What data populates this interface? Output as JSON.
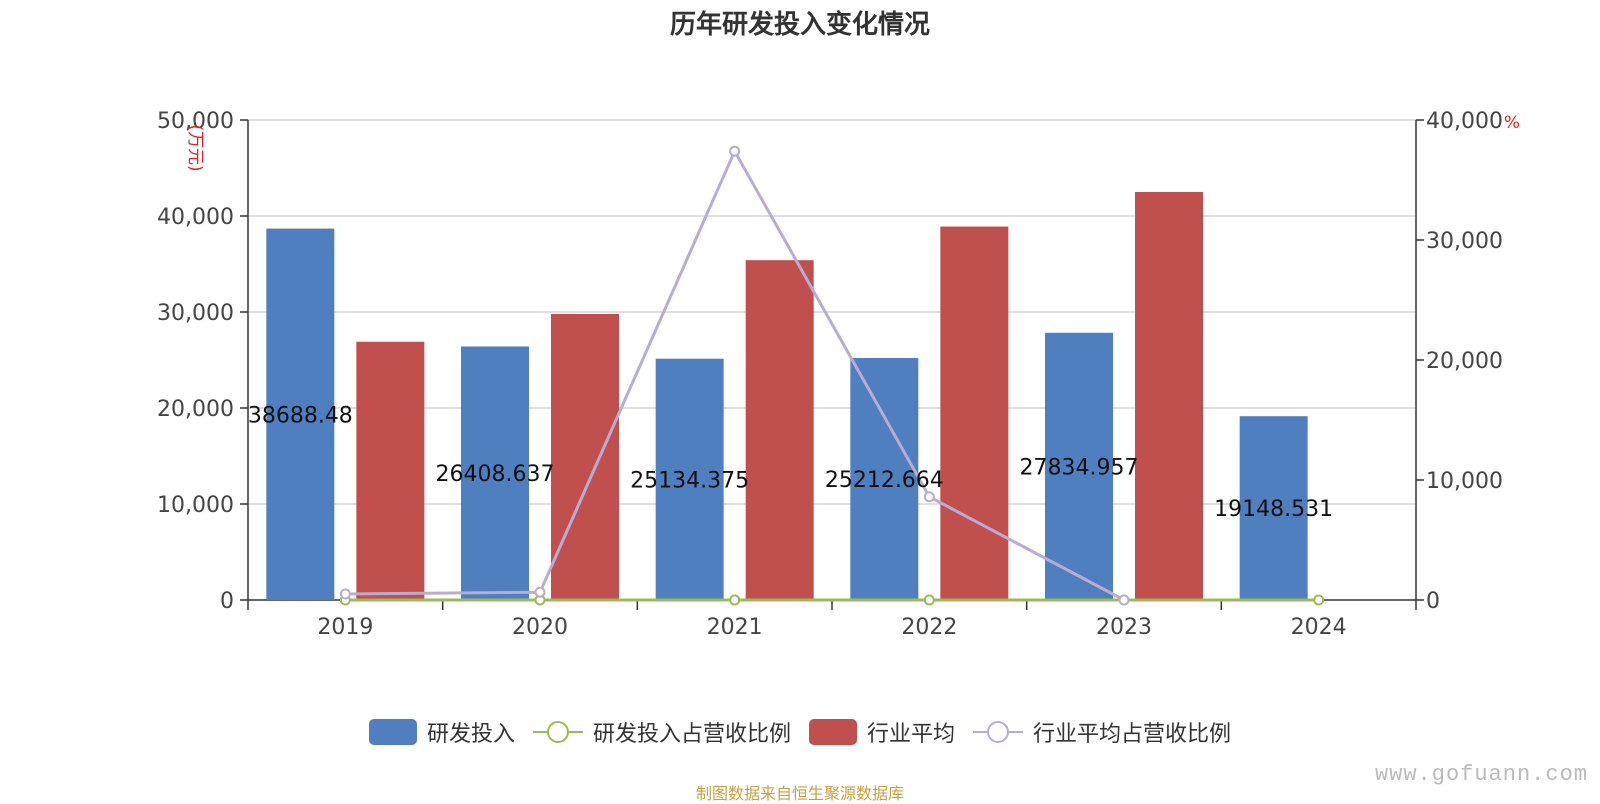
{
  "title": "历年研发投入变化情况",
  "unit_left": "(万元)",
  "unit_right": "%",
  "source_note": "制图数据来自恒生聚源数据库",
  "watermark": "www.gofuann.com",
  "legend": [
    {
      "label": "研发投入",
      "kind": "bar",
      "color": "#4f7fbf"
    },
    {
      "label": "研发投入占营收比例",
      "kind": "line",
      "color": "#9bbb59"
    },
    {
      "label": "行业平均",
      "kind": "bar",
      "color": "#c0504d"
    },
    {
      "label": "行业平均占营收比例",
      "kind": "line",
      "color": "#b9acd3"
    }
  ],
  "chart_data": {
    "type": "bar",
    "title": "历年研发投入变化情况",
    "categories": [
      "2019",
      "2020",
      "2021",
      "2022",
      "2023",
      "2024"
    ],
    "y_left": {
      "label": "(万元)",
      "range": [
        0,
        50000
      ],
      "ticks": [
        "0",
        "10,000",
        "20,000",
        "30,000",
        "40,000",
        "50,000"
      ]
    },
    "y_right": {
      "label": "%",
      "range": [
        0,
        40000
      ],
      "ticks": [
        "0",
        "10,000",
        "20,000",
        "30,000",
        "40,000"
      ]
    },
    "grid": true,
    "legend_position": "bottom",
    "series": [
      {
        "name": "研发投入",
        "type": "bar",
        "axis": "left",
        "color": "#4f7fbf",
        "values": [
          38688.48,
          26408.637,
          25134.375,
          25212.664,
          27834.957,
          19148.531
        ],
        "labels": [
          "38688.48",
          "26408.637",
          "25134.375",
          "25212.664",
          "27834.957",
          "19148.531"
        ]
      },
      {
        "name": "行业平均",
        "type": "bar",
        "axis": "left",
        "color": "#c0504d",
        "values": [
          26900,
          29800,
          35400,
          38900,
          42500,
          null
        ]
      },
      {
        "name": "研发投入占营收比例",
        "type": "line",
        "axis": "right",
        "color": "#9bbb59",
        "values": [
          0.5,
          0.5,
          0.5,
          0.5,
          0.5,
          0.5
        ]
      },
      {
        "name": "行业平均占营收比例",
        "type": "line",
        "axis": "right",
        "color": "#b9acd3",
        "values": [
          500,
          650,
          37400,
          8600,
          0,
          null
        ]
      }
    ]
  }
}
